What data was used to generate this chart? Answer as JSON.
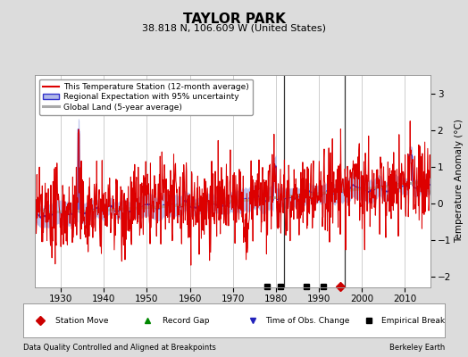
{
  "title": "TAYLOR PARK",
  "subtitle": "38.818 N, 106.609 W (United States)",
  "ylabel": "Temperature Anomaly (°C)",
  "xlabel_left": "Data Quality Controlled and Aligned at Breakpoints",
  "xlabel_right": "Berkeley Earth",
  "xlim": [
    1924,
    2016
  ],
  "ylim": [
    -2.3,
    3.5
  ],
  "yticks": [
    -2,
    -1,
    0,
    1,
    2,
    3
  ],
  "xticks": [
    1930,
    1940,
    1950,
    1960,
    1970,
    1980,
    1990,
    2000,
    2010
  ],
  "bg_color": "#dcdcdc",
  "plot_bg_color": "#ffffff",
  "grid_color": "#bbbbbb",
  "empirical_breaks": [
    1978,
    1981,
    1987,
    1991
  ],
  "station_moves": [
    1995
  ],
  "vertical_lines": [
    1982,
    1996
  ],
  "title_fontsize": 11,
  "subtitle_fontsize": 8,
  "axis_fontsize": 7.5,
  "legend_fontsize": 6.5
}
